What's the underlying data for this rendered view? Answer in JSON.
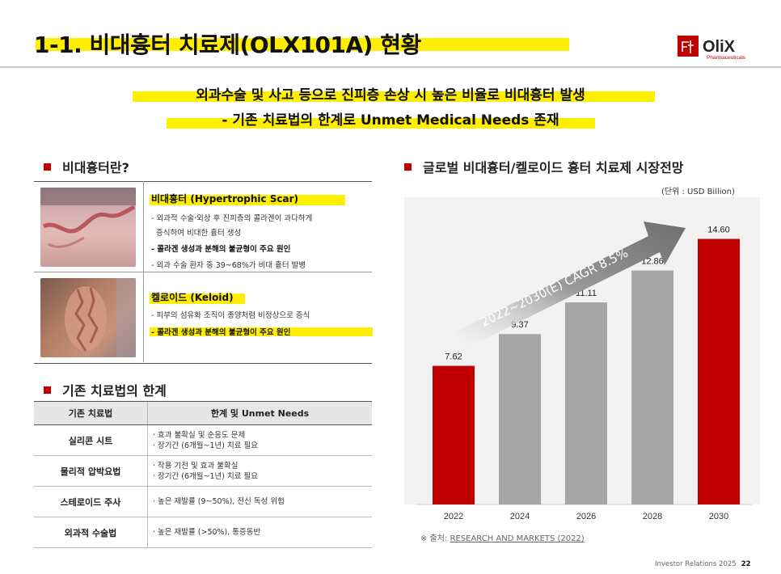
{
  "header": {
    "title": "1-1. 비대흉터 치료제(OLX101A) 현황",
    "logo_text": "OliX",
    "logo_sub": "Pharmaceuticals"
  },
  "subtitle": {
    "line1": "외과수술 및 사고 등으로 진피층 손상 시 높은 비율로 비대흉터 발생",
    "line2": "- 기존 치료법의 한계로 Unmet Medical Needs 존재"
  },
  "definition": {
    "section_title": "비대흉터란?",
    "hypertrophic": {
      "heading": "비대흉터 (Hypertrophic Scar)",
      "lines": [
        "- 외과적 수술·외상 후 진피층의 콜라겐이 과다하게",
        "  증식하여 비대한 흉터 생성",
        "- 콜라겐 생성과 분해의 불균형이 주요 원인",
        "- 외과 수술 환자 중 39~68%가 비대 흉터 발병"
      ]
    },
    "keloid": {
      "heading": "켈로이드 (Keloid)",
      "lines": [
        "- 피부의 섬유화 조직이 종양처럼 비정상으로 증식",
        "- 콜라겐 생성과 분해의 불균형이 주요 원인"
      ]
    }
  },
  "limitations": {
    "section_title": "기존 치료법의 한계",
    "headers": [
      "기존 치료법",
      "한계 및 Unmet Needs"
    ],
    "rows": [
      {
        "name": "실리콘 시트",
        "desc": [
          "· 효과 불확실 및 순응도 문제",
          "· 장기간 (6개월~1년) 치료 필요"
        ]
      },
      {
        "name": "물리적 압박요법",
        "desc": [
          "· 작용 기전 및 효과 불확실",
          "· 장기간 (6개월~1년) 치료 필요"
        ]
      },
      {
        "name": "스테로이드 주사",
        "desc": [
          "· 높은 재발률 (9~50%), 전신 독성 위험"
        ]
      },
      {
        "name": "외과적 수술법",
        "desc": [
          "· 높은 재발률 (>50%), 통증동반"
        ]
      }
    ]
  },
  "chart": {
    "section_title": "글로벌 비대흉터/켈로이드 흉터 치료제 시장전망",
    "unit": "(단위 : USD Billion)",
    "cagr_label": "2022~2030(E) CAGR 8.5%",
    "source_prefix": "※ 출처: ",
    "source": "RESEARCH AND MARKETS (2022)"
  },
  "chart_data": {
    "type": "bar",
    "categories": [
      "2022",
      "2024",
      "2026",
      "2028",
      "2030"
    ],
    "values": [
      7.62,
      9.37,
      11.11,
      12.86,
      14.6
    ],
    "value_labels": [
      "7.62",
      "9.37",
      "11.11",
      "12.86",
      "14.60"
    ],
    "ylim": [
      0,
      16
    ],
    "colors": [
      "#c00000",
      "#a6a6a6",
      "#a6a6a6",
      "#a6a6a6",
      "#c00000"
    ],
    "title": "",
    "xlabel": "",
    "ylabel": ""
  },
  "footer": {
    "text": "Investor Relations 2025",
    "page": "22"
  }
}
